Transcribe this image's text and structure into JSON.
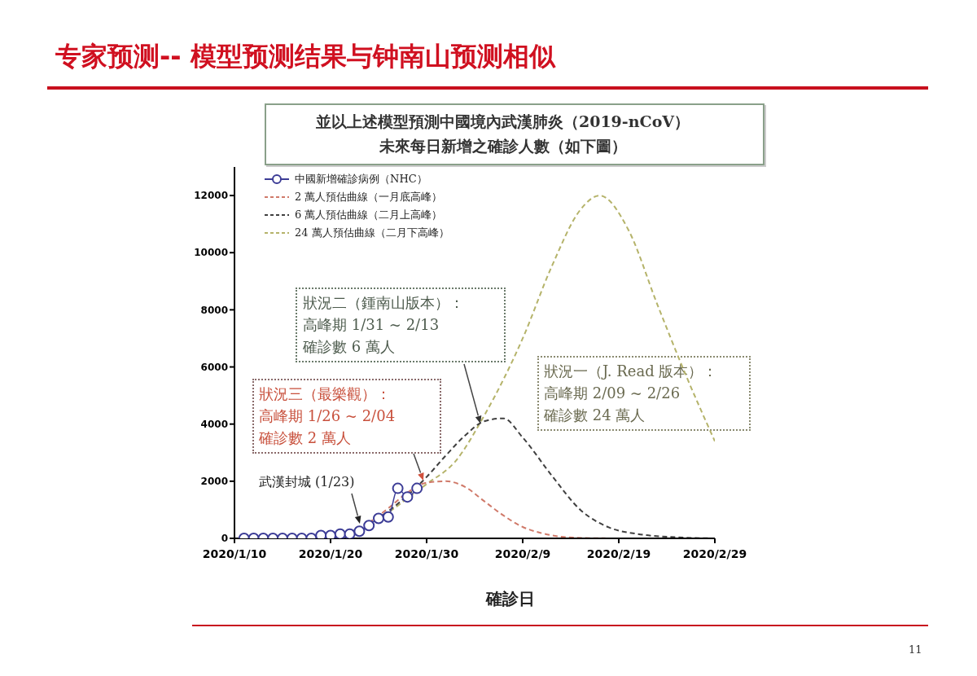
{
  "chart_data": {
    "type": "line",
    "title": "专家预测-- 模型预测结果与钟南山预测相似",
    "subtitle": "並以上述模型預測中國境內武漢肺炎（2019-nCoV）未來每日新增之確診人數（如下圖）",
    "xlabel": "確診日",
    "xlim": [
      "2020-01-10",
      "2020-02-29"
    ],
    "xticks": [
      {
        "value": "2020-01-10",
        "label": "2020/1/10"
      },
      {
        "value": "2020-01-20",
        "label": "2020/1/20"
      },
      {
        "value": "2020-01-30",
        "label": "2020/1/30"
      },
      {
        "value": "2020-02-09",
        "label": "2020/2/9"
      },
      {
        "value": "2020-02-19",
        "label": "2020/2/19"
      },
      {
        "value": "2020-02-29",
        "label": "2020/2/29"
      }
    ],
    "ylim": [
      0,
      13000
    ],
    "yticks": [
      0,
      2000,
      4000,
      6000,
      8000,
      10000,
      12000
    ],
    "legend": "top left",
    "series": [
      {
        "name": "中國新增確診病例（NHC）",
        "color": "#3c3c96",
        "marker": "circle",
        "line_style": "solid",
        "x": [
          "2020-01-11",
          "2020-01-12",
          "2020-01-13",
          "2020-01-14",
          "2020-01-15",
          "2020-01-16",
          "2020-01-17",
          "2020-01-18",
          "2020-01-19",
          "2020-01-20",
          "2020-01-21",
          "2020-01-22",
          "2020-01-23",
          "2020-01-24",
          "2020-01-25",
          "2020-01-26",
          "2020-01-27",
          "2020-01-28",
          "2020-01-29"
        ],
        "values": [
          0,
          0,
          0,
          0,
          0,
          0,
          0,
          0,
          100,
          100,
          150,
          150,
          250,
          450,
          700,
          750,
          1750,
          1450,
          1750
        ]
      },
      {
        "name": "2 萬人預估曲線（一月底高峰）",
        "color": "#d07a6a",
        "marker": "none",
        "line_style": "dashed",
        "x": [
          "2020-01-24",
          "2020-01-26",
          "2020-01-28",
          "2020-01-30",
          "2020-02-01",
          "2020-02-03",
          "2020-02-05",
          "2020-02-07",
          "2020-02-09",
          "2020-02-11",
          "2020-02-13",
          "2020-02-16",
          "2020-02-20",
          "2020-02-29"
        ],
        "values": [
          550,
          1050,
          1600,
          1950,
          2000,
          1800,
          1300,
          800,
          400,
          180,
          60,
          10,
          0,
          0
        ]
      },
      {
        "name": "6 萬人預估曲線（二月上高峰）",
        "color": "#404040",
        "marker": "none",
        "line_style": "dashed",
        "x": [
          "2020-01-24",
          "2020-01-26",
          "2020-01-28",
          "2020-01-30",
          "2020-02-01",
          "2020-02-03",
          "2020-02-05",
          "2020-02-07",
          "2020-02-09",
          "2020-02-12",
          "2020-02-15",
          "2020-02-18",
          "2020-02-21",
          "2020-02-25",
          "2020-02-29"
        ],
        "values": [
          520,
          950,
          1500,
          2150,
          2900,
          3600,
          4100,
          4200,
          3530,
          2210,
          1000,
          380,
          150,
          40,
          0
        ]
      },
      {
        "name": "24 萬人預估曲線（二月下高峰）",
        "color": "#b5b36a",
        "marker": "none",
        "line_style": "dashed",
        "x": [
          "2020-01-24",
          "2020-01-26",
          "2020-01-28",
          "2020-01-30",
          "2020-02-02",
          "2020-02-05",
          "2020-02-09",
          "2020-02-12",
          "2020-02-15",
          "2020-02-17",
          "2020-02-20",
          "2020-02-23",
          "2020-02-26",
          "2020-02-29"
        ],
        "values": [
          500,
          900,
          1400,
          1900,
          2700,
          4300,
          7000,
          9500,
          11500,
          12000,
          10800,
          8200,
          5700,
          3400
        ]
      }
    ],
    "annotations": [
      "狀況二（鍾南山版本）：",
      "高峰期 1/31 ~ 2/13",
      "確診數 6 萬人",
      "狀況三（最樂觀）：",
      "高峰期 1/26 ~ 2/04",
      "確診數 2 萬人",
      "狀況一（J. Read 版本）：",
      "高峰期 2/09 ~ 2/26",
      "確診數 24 萬人",
      "武漢封城 (1/23)",
      "11"
    ]
  }
}
